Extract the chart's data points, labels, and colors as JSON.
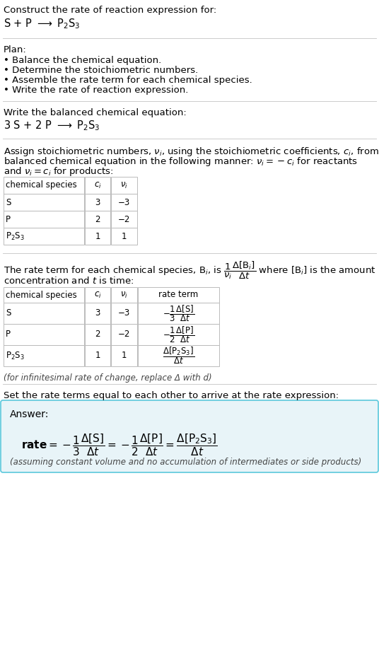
{
  "title_line1": "Construct the rate of reaction expression for:",
  "plan_header": "Plan:",
  "plan_bullets": [
    "• Balance the chemical equation.",
    "• Determine the stoichiometric numbers.",
    "• Assemble the rate term for each chemical species.",
    "• Write the rate of reaction expression."
  ],
  "balanced_header": "Write the balanced chemical equation:",
  "set_equal_text": "Set the rate terms equal to each other to arrive at the rate expression:",
  "answer_label": "Answer:",
  "answer_box_color": "#e8f4f8",
  "answer_box_border": "#5bc8dc",
  "answer_note": "(assuming constant volume and no accumulation of intermediates or side products)",
  "bg_color": "#ffffff",
  "text_color": "#000000",
  "table_border_color": "#bbbbbb",
  "separator_color": "#cccccc",
  "infinitesimal_note": "(for infinitesimal rate of change, replace Δ with d)",
  "table1_headers": [
    "chemical species",
    "c_i",
    "nu_i"
  ],
  "table1_data": [
    [
      "S",
      "3",
      "−3"
    ],
    [
      "P",
      "2",
      "−2"
    ],
    [
      "P₂S₃",
      "1",
      "1"
    ]
  ],
  "table2_headers": [
    "chemical species",
    "c_i",
    "nu_i",
    "rate term"
  ],
  "table2_data": [
    [
      "S",
      "3",
      "−3"
    ],
    [
      "P",
      "2",
      "−2"
    ],
    [
      "P₂S₃",
      "1",
      "1"
    ]
  ]
}
